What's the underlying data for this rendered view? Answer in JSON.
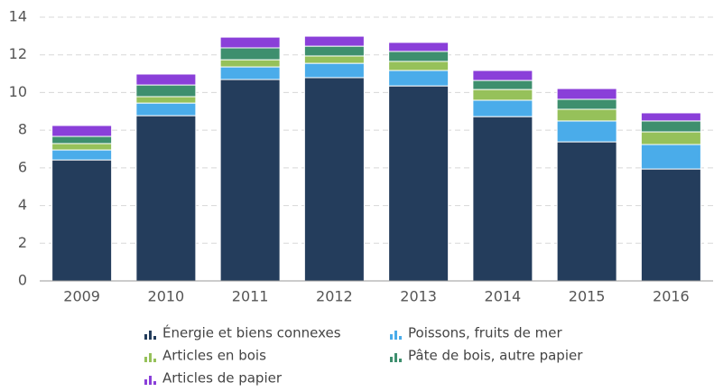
{
  "chart_data": {
    "type": "stacked_bar",
    "categories": [
      "2009",
      "2010",
      "2011",
      "2012",
      "2013",
      "2014",
      "2015",
      "2016"
    ],
    "series": [
      {
        "name": "Énergie et biens connexes",
        "color": "#243d5c",
        "values": [
          6.42,
          8.77,
          10.69,
          10.79,
          10.35,
          8.72,
          7.38,
          5.94
        ]
      },
      {
        "name": "Poissons, fruits de mer",
        "color": "#4aacea",
        "values": [
          0.53,
          0.67,
          0.67,
          0.76,
          0.82,
          0.87,
          1.11,
          1.3
        ]
      },
      {
        "name": "Articles en bois",
        "color": "#96c15a",
        "values": [
          0.34,
          0.34,
          0.38,
          0.39,
          0.48,
          0.57,
          0.62,
          0.67
        ]
      },
      {
        "name": "Pâte de bois, autre papier",
        "color": "#3e8f6e",
        "values": [
          0.38,
          0.62,
          0.63,
          0.52,
          0.53,
          0.48,
          0.53,
          0.58
        ]
      },
      {
        "name": "Articles de papier",
        "color": "#8a3fd9",
        "values": [
          0.58,
          0.58,
          0.57,
          0.53,
          0.48,
          0.53,
          0.57,
          0.43
        ]
      }
    ],
    "ylim": [
      0,
      14
    ],
    "yticks": [
      0,
      2,
      4,
      6,
      8,
      10,
      12,
      14
    ],
    "grid": true
  }
}
